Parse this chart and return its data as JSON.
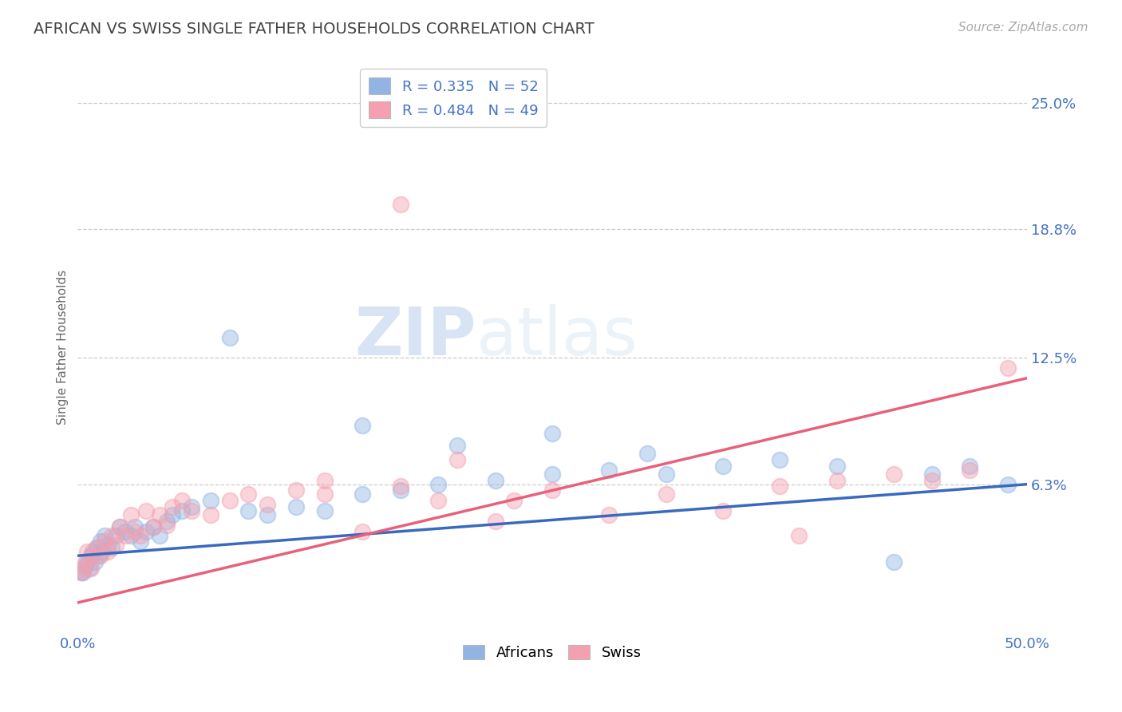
{
  "title": "AFRICAN VS SWISS SINGLE FATHER HOUSEHOLDS CORRELATION CHART",
  "source": "Source: ZipAtlas.com",
  "ylabel": "Single Father Households",
  "ytick_labels": [
    "6.3%",
    "12.5%",
    "18.8%",
    "25.0%"
  ],
  "ytick_vals": [
    0.063,
    0.125,
    0.188,
    0.25
  ],
  "xlim": [
    0.0,
    0.5
  ],
  "ylim": [
    -0.01,
    0.27
  ],
  "legend_line1": "R = 0.335   N = 52",
  "legend_line2": "R = 0.484   N = 49",
  "color_africans": "#92b4e3",
  "color_swiss": "#f4a0b0",
  "color_line_africans": "#3a6abf",
  "color_line_swiss": "#e8607a",
  "color_title": "#444444",
  "color_ticks": "#4472c4",
  "watermark_zip": "ZIP",
  "watermark_atlas": "atlas",
  "africans_x": [
    0.002,
    0.003,
    0.004,
    0.005,
    0.006,
    0.007,
    0.008,
    0.009,
    0.01,
    0.011,
    0.012,
    0.013,
    0.014,
    0.016,
    0.018,
    0.02,
    0.022,
    0.025,
    0.028,
    0.03,
    0.033,
    0.036,
    0.04,
    0.043,
    0.047,
    0.05,
    0.055,
    0.06,
    0.07,
    0.08,
    0.09,
    0.1,
    0.115,
    0.13,
    0.15,
    0.17,
    0.19,
    0.22,
    0.25,
    0.28,
    0.31,
    0.34,
    0.37,
    0.4,
    0.43,
    0.45,
    0.47,
    0.49,
    0.15,
    0.2,
    0.25,
    0.3
  ],
  "africans_y": [
    0.02,
    0.02,
    0.023,
    0.025,
    0.022,
    0.028,
    0.03,
    0.025,
    0.032,
    0.028,
    0.035,
    0.03,
    0.038,
    0.033,
    0.032,
    0.038,
    0.042,
    0.04,
    0.038,
    0.042,
    0.035,
    0.04,
    0.042,
    0.038,
    0.045,
    0.048,
    0.05,
    0.052,
    0.055,
    0.135,
    0.05,
    0.048,
    0.052,
    0.05,
    0.058,
    0.06,
    0.063,
    0.065,
    0.068,
    0.07,
    0.068,
    0.072,
    0.075,
    0.072,
    0.025,
    0.068,
    0.072,
    0.063,
    0.092,
    0.082,
    0.088,
    0.078
  ],
  "swiss_x": [
    0.002,
    0.003,
    0.004,
    0.005,
    0.007,
    0.008,
    0.01,
    0.012,
    0.014,
    0.016,
    0.018,
    0.02,
    0.022,
    0.025,
    0.028,
    0.03,
    0.033,
    0.036,
    0.04,
    0.043,
    0.047,
    0.05,
    0.055,
    0.06,
    0.07,
    0.08,
    0.09,
    0.1,
    0.115,
    0.13,
    0.15,
    0.17,
    0.19,
    0.22,
    0.25,
    0.28,
    0.31,
    0.34,
    0.37,
    0.4,
    0.43,
    0.45,
    0.47,
    0.49,
    0.23,
    0.17,
    0.2,
    0.13,
    0.38
  ],
  "swiss_y": [
    0.02,
    0.022,
    0.025,
    0.03,
    0.022,
    0.028,
    0.032,
    0.028,
    0.035,
    0.03,
    0.038,
    0.033,
    0.042,
    0.038,
    0.048,
    0.04,
    0.038,
    0.05,
    0.042,
    0.048,
    0.043,
    0.052,
    0.055,
    0.05,
    0.048,
    0.055,
    0.058,
    0.053,
    0.06,
    0.058,
    0.04,
    0.062,
    0.055,
    0.045,
    0.06,
    0.048,
    0.058,
    0.05,
    0.062,
    0.065,
    0.068,
    0.065,
    0.07,
    0.12,
    0.055,
    0.2,
    0.075,
    0.065,
    0.038
  ],
  "africans_trend": [
    0.028,
    0.063
  ],
  "swiss_trend": [
    0.005,
    0.115
  ]
}
